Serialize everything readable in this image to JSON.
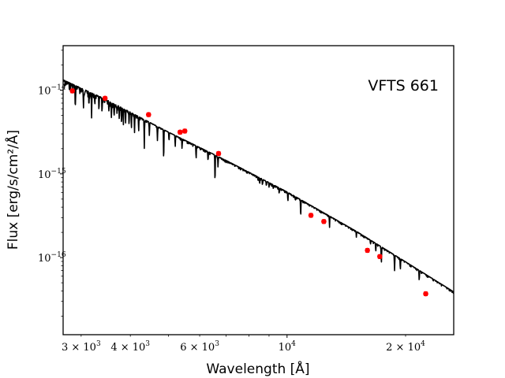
{
  "chart_data": {
    "type": "scatter",
    "title": "",
    "annotation": "VFTS 661",
    "xlabel": "Wavelength [Å]",
    "ylabel": "Flux [erg/s/cm²/Å]",
    "x_scale": "log",
    "y_scale": "log",
    "xlim": [
      2700,
      26500
    ],
    "ylim": [
      1.2e-17,
      3.4e-14
    ],
    "grid": false,
    "x_ticks": [
      {
        "value": 3000,
        "mantissa": "3 × 10",
        "exp": "3"
      },
      {
        "value": 4000,
        "mantissa": "4 × 10",
        "exp": "3"
      },
      {
        "value": 6000,
        "mantissa": "6 × 10",
        "exp": "3"
      },
      {
        "value": 10000,
        "mantissa": "10",
        "exp": "4"
      },
      {
        "value": 20000,
        "mantissa": "2 × 10",
        "exp": "4"
      }
    ],
    "y_ticks": [
      {
        "value": 1e-16,
        "mantissa": "10",
        "exp": "−16"
      },
      {
        "value": 1e-15,
        "mantissa": "10",
        "exp": "−15"
      },
      {
        "value": 1e-14,
        "mantissa": "10",
        "exp": "−14"
      }
    ],
    "series": [
      {
        "kind": "model",
        "color": "#000000",
        "continuum": [
          [
            2700,
            1.33e-14
          ],
          [
            3500,
            7.6e-15
          ],
          [
            5000,
            3.15e-15
          ],
          [
            7000,
            1.45e-15
          ],
          [
            10000,
            6.1e-16
          ],
          [
            15000,
            2.06e-16
          ],
          [
            20000,
            8.9e-17
          ],
          [
            26500,
            3.9e-17
          ]
        ],
        "absorption_lines": [
          [
            2900,
            0.42
          ],
          [
            3040,
            0.35
          ],
          [
            3140,
            0.3
          ],
          [
            3190,
            0.4
          ],
          [
            3250,
            0.25
          ],
          [
            3330,
            0.28
          ],
          [
            3390,
            0.3
          ],
          [
            3530,
            0.22
          ],
          [
            3580,
            0.3
          ],
          [
            3640,
            0.25
          ],
          [
            3700,
            0.2
          ],
          [
            3750,
            0.3
          ],
          [
            3800,
            0.35
          ],
          [
            3840,
            0.3
          ],
          [
            3890,
            0.3
          ],
          [
            3970,
            0.3
          ],
          [
            4025,
            0.35
          ],
          [
            4100,
            0.35
          ],
          [
            4200,
            0.3
          ],
          [
            4340,
            0.55
          ],
          [
            4471,
            0.3
          ],
          [
            4686,
            0.3
          ],
          [
            4861,
            0.6
          ],
          [
            5015,
            0.2
          ],
          [
            5200,
            0.25
          ],
          [
            5412,
            0.2
          ],
          [
            5876,
            0.3
          ],
          [
            6300,
            0.2
          ],
          [
            6563,
            0.55
          ],
          [
            6678,
            0.25
          ],
          [
            8440,
            0.1
          ],
          [
            8520,
            0.12
          ],
          [
            8660,
            0.15
          ],
          [
            8860,
            0.12
          ],
          [
            9000,
            0.12
          ],
          [
            9230,
            0.1
          ],
          [
            9550,
            0.15
          ],
          [
            10050,
            0.22
          ],
          [
            10500,
            0.1
          ],
          [
            10830,
            0.35
          ],
          [
            12820,
            0.25
          ],
          [
            15000,
            0.12
          ],
          [
            16300,
            0.1
          ],
          [
            16800,
            0.2
          ],
          [
            17360,
            0.35
          ],
          [
            18750,
            0.35
          ],
          [
            19400,
            0.25
          ],
          [
            21660,
            0.25
          ]
        ]
      },
      {
        "kind": "photometry",
        "color": "#ff0000",
        "points": [
          {
            "x": 2850,
            "y": 9.8e-15,
            "err": 0.05
          },
          {
            "x": 3450,
            "y": 8e-15,
            "err": 0.05
          },
          {
            "x": 4450,
            "y": 5.1e-15,
            "err": 0.05
          },
          {
            "x": 5350,
            "y": 3.15e-15,
            "err": 0.05
          },
          {
            "x": 5500,
            "y": 3.25e-15,
            "err": 0.05
          },
          {
            "x": 6700,
            "y": 1.75e-15,
            "err": 0.05
          },
          {
            "x": 11500,
            "y": 3.2e-16,
            "err": 0.05
          },
          {
            "x": 12400,
            "y": 2.7e-16,
            "err": 0.05
          },
          {
            "x": 16000,
            "y": 1.22e-16,
            "err": 0.05
          },
          {
            "x": 17200,
            "y": 1.03e-16,
            "err": 0.05
          },
          {
            "x": 22500,
            "y": 3.7e-17,
            "err": 0.05
          }
        ]
      }
    ]
  }
}
